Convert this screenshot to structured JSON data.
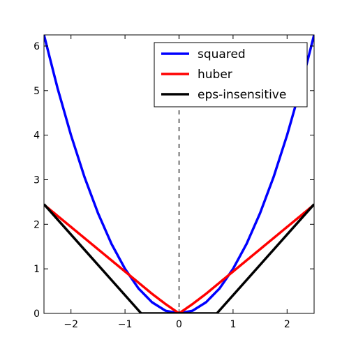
{
  "chart_data": {
    "type": "line",
    "title": "",
    "xlabel": "",
    "ylabel": "",
    "xlim": [
      -2.5,
      2.5
    ],
    "ylim": [
      0,
      6.25
    ],
    "xticks": [
      -2,
      -1,
      0,
      1,
      2
    ],
    "xtick_labels": [
      "−2",
      "−1",
      "0",
      "1",
      "2"
    ],
    "yticks": [
      0,
      1,
      2,
      3,
      4,
      5,
      6
    ],
    "ytick_labels": [
      "0",
      "1",
      "2",
      "3",
      "4",
      "5",
      "6"
    ],
    "grid": false,
    "legend_position": "top-right",
    "vertical_reference_line": {
      "x": 0,
      "style": "dashed",
      "color": "#000000"
    },
    "series": [
      {
        "name": "squared",
        "color": "#0000ff",
        "x": [
          -2.5,
          -2.25,
          -2.0,
          -1.75,
          -1.5,
          -1.25,
          -1.0,
          -0.75,
          -0.5,
          -0.25,
          0.0,
          0.25,
          0.5,
          0.75,
          1.0,
          1.25,
          1.5,
          1.75,
          2.0,
          2.25,
          2.5
        ],
        "y": [
          6.25,
          5.06,
          4.0,
          3.06,
          2.25,
          1.56,
          1.0,
          0.56,
          0.25,
          0.06,
          0.0,
          0.06,
          0.25,
          0.56,
          1.0,
          1.56,
          2.25,
          3.06,
          4.0,
          5.06,
          6.25
        ]
      },
      {
        "name": "huber",
        "color": "#ff0000",
        "x": [
          -2.5,
          -2.0,
          -1.5,
          -1.0,
          -0.75,
          -0.5,
          -0.25,
          0.0,
          0.25,
          0.5,
          0.75,
          1.0,
          1.5,
          2.0,
          2.5
        ],
        "y": [
          2.44,
          1.94,
          1.44,
          0.94,
          0.69,
          0.44,
          0.21,
          0.0,
          0.21,
          0.44,
          0.69,
          0.94,
          1.44,
          1.94,
          2.44
        ]
      },
      {
        "name": "eps-insensitive",
        "color": "#000000",
        "x": [
          -2.5,
          -0.7,
          0.7,
          2.5
        ],
        "y": [
          2.45,
          0.0,
          0.0,
          2.45
        ]
      }
    ]
  }
}
